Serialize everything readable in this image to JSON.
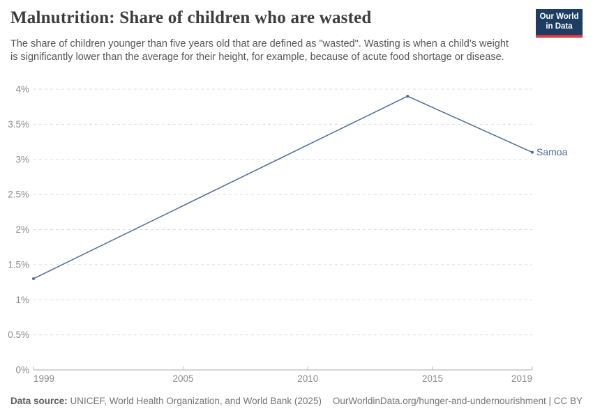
{
  "header": {
    "title": "Malnutrition: Share of children who are wasted",
    "subtitle": "The share of children younger than five years old that are defined as \"wasted\". Wasting is when a child’s weight is significantly lower than the average for their height, for example, because of acute food shortage or disease.",
    "logo": {
      "line1": "Our World",
      "line2": "in Data"
    }
  },
  "footer": {
    "source_label": "Data source:",
    "source_text": " UNICEF, World Health Organization, and World Bank (2025)",
    "link_text": "OurWorldinData.org/hunger-and-undernourishment | CC BY"
  },
  "chart_data": {
    "type": "line",
    "title": "Malnutrition: Share of children who are wasted",
    "series": [
      {
        "name": "Samoa",
        "x": [
          1999,
          2014,
          2019
        ],
        "values": [
          1.3,
          3.9,
          3.1
        ],
        "color": "#4C6A9C"
      }
    ],
    "xlabel": "",
    "ylabel": "",
    "xlim": [
      1999,
      2019
    ],
    "ylim": [
      0,
      4
    ],
    "xticks": [
      1999,
      2005,
      2010,
      2015,
      2019
    ],
    "yticks": [
      0,
      0.5,
      1,
      1.5,
      2,
      2.5,
      3,
      3.5,
      4
    ],
    "ytick_suffix": "%",
    "grid": "horizontal-dashed",
    "legend_position": "end-of-line-label"
  },
  "colors": {
    "line": "#4C6A9C",
    "grid": "#dddddd",
    "axis": "#a8a8a8",
    "tick": "#bbbbbb",
    "tick_label": "#8a8a8a",
    "entity_label": "#4C6A9C",
    "title": "#3d3d3d",
    "subtitle": "#555555",
    "footer": "#757575",
    "logo_bg": "#1d3d63",
    "logo_red": "#e0383e"
  }
}
